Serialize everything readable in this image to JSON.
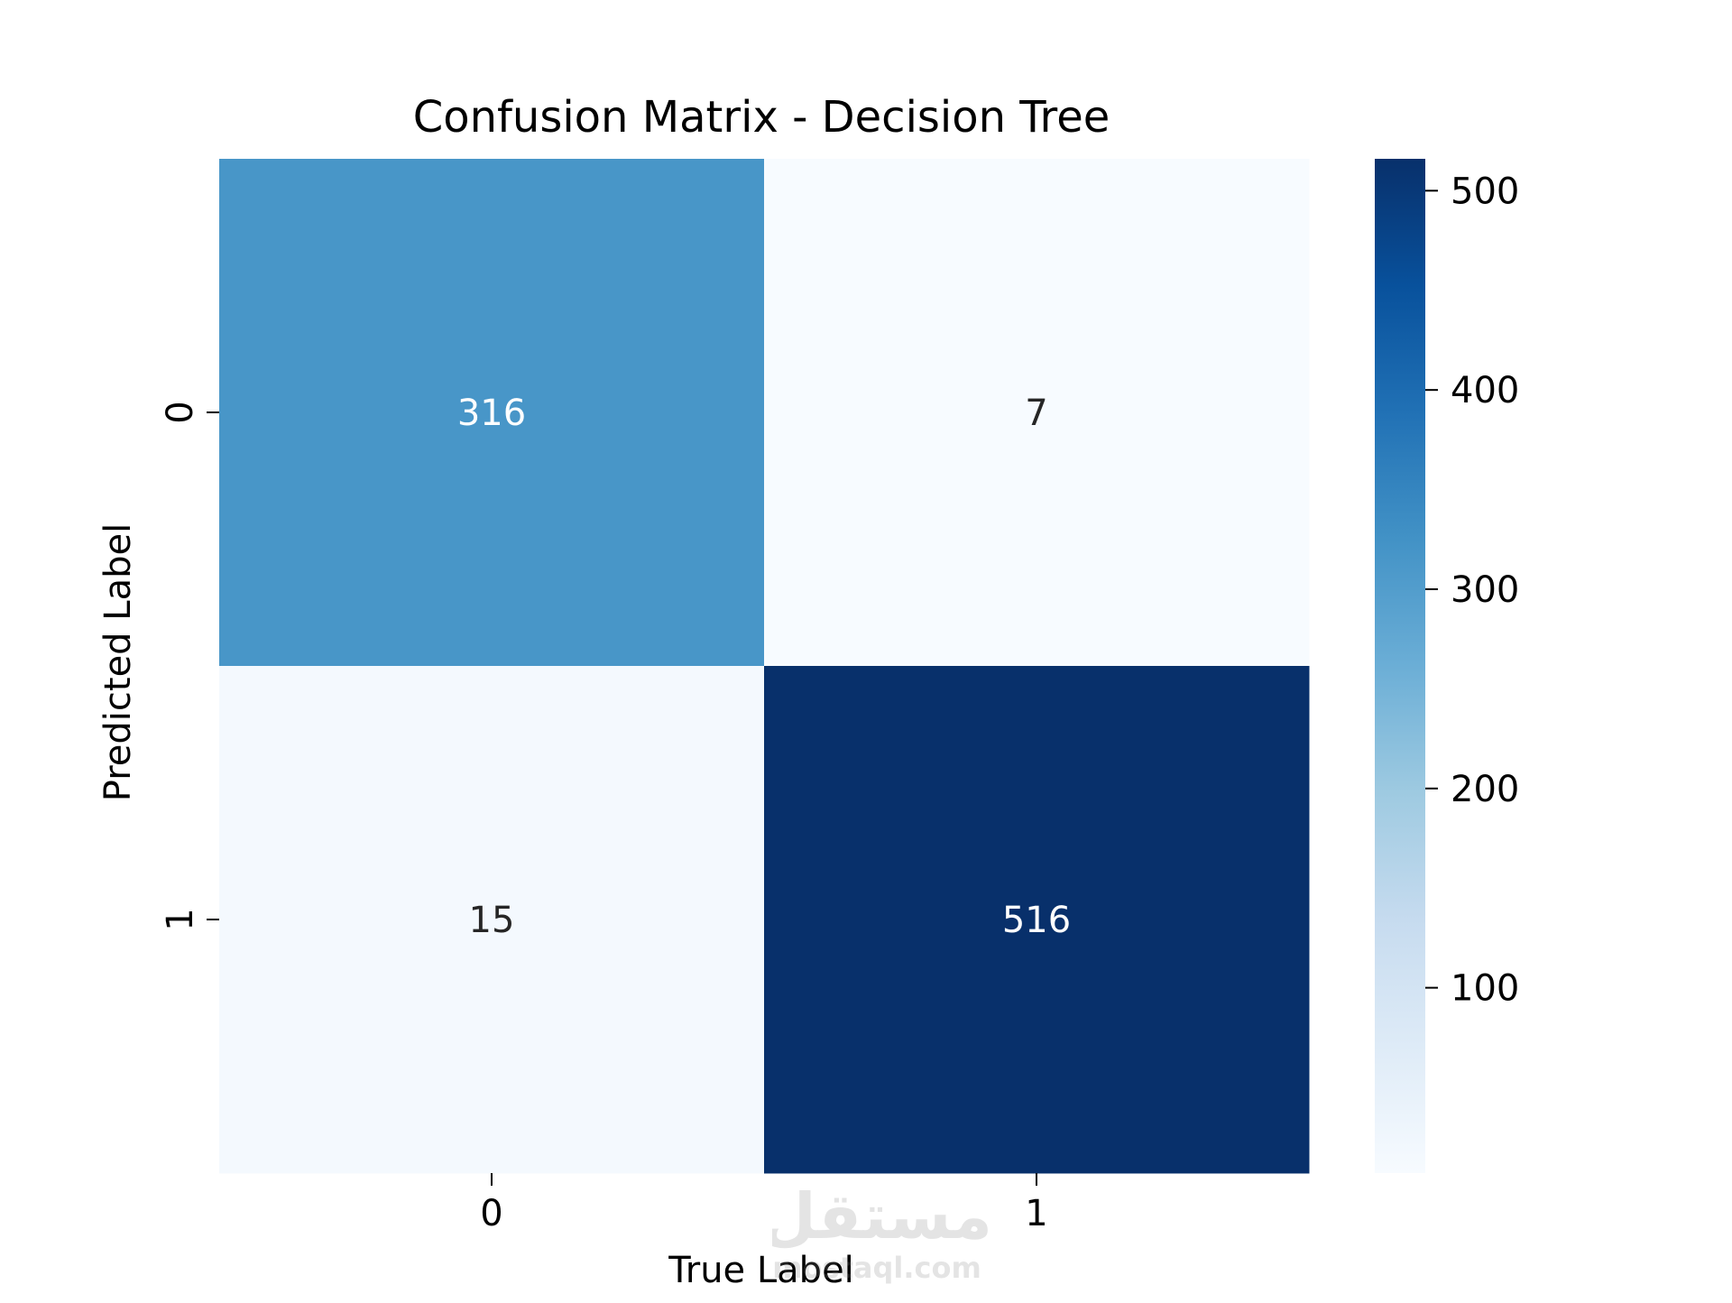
{
  "chart_data": {
    "type": "heatmap",
    "title": "Confusion Matrix - Decision Tree",
    "xlabel": "True Label",
    "ylabel": "Predicted Label",
    "x_categories": [
      "0",
      "1"
    ],
    "y_categories": [
      "0",
      "1"
    ],
    "values": [
      [
        316,
        7
      ],
      [
        15,
        516
      ]
    ],
    "colormap": "Blues",
    "colorbar": {
      "range": [
        7,
        516
      ],
      "ticks": [
        100,
        200,
        300,
        400,
        500
      ],
      "tick_labels": [
        "100",
        "200",
        "300",
        "400",
        "500"
      ]
    },
    "grid": false,
    "legend": "colorbar-right",
    "annotations": true
  },
  "watermark": {
    "brand": "مستقل",
    "site": "mostaql.com"
  }
}
